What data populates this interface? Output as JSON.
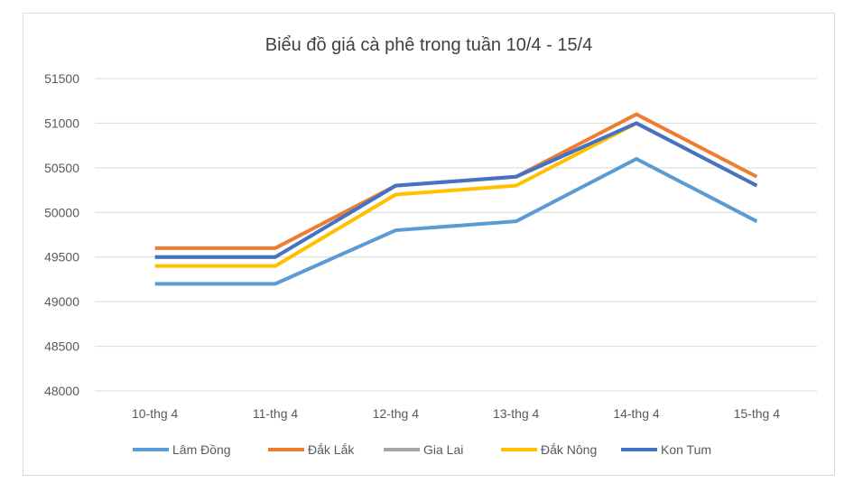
{
  "chart_data": {
    "type": "line",
    "title": "Biểu đồ giá cà phê trong tuần 10/4 - 15/4",
    "xlabel": "",
    "ylabel": "",
    "categories": [
      "10-thg 4",
      "11-thg 4",
      "12-thg 4",
      "13-thg 4",
      "14-thg 4",
      "15-thg 4"
    ],
    "ylim": [
      48000,
      51500
    ],
    "yticks": [
      48000,
      48500,
      49000,
      49500,
      50000,
      50500,
      51000,
      51500
    ],
    "grid": true,
    "legend_position": "bottom",
    "series": [
      {
        "name": "Lâm Đồng",
        "color": "#5b9bd5",
        "values": [
          49200,
          49200,
          49800,
          49900,
          50600,
          49900
        ]
      },
      {
        "name": "Đắk Lắk",
        "color": "#ed7d31",
        "values": [
          49600,
          49600,
          50300,
          50400,
          51100,
          50400
        ]
      },
      {
        "name": "Gia Lai",
        "color": "#a5a5a5",
        "values": [
          49500,
          49500,
          50300,
          50400,
          51000,
          50300
        ]
      },
      {
        "name": "Đắk Nông",
        "color": "#ffc000",
        "values": [
          49400,
          49400,
          50200,
          50300,
          51000,
          50300
        ]
      },
      {
        "name": "Kon Tum",
        "color": "#4472c4",
        "values": [
          49500,
          49500,
          50300,
          50400,
          51000,
          50300
        ]
      }
    ]
  }
}
